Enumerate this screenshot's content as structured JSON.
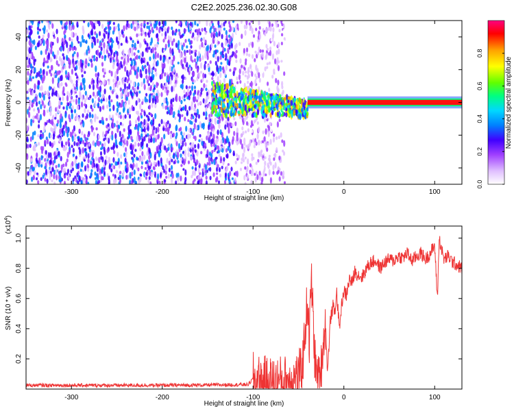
{
  "figure_title": "C2E2.2025.236.02.30.G08",
  "chart_data": [
    {
      "type": "heatmap",
      "title": "C2E2.2025.236.02.30.G08",
      "xlabel": "Height of straight line (km)",
      "ylabel": "Frequency (Hz)",
      "xlim": [
        -350,
        130
      ],
      "ylim": [
        -50,
        50
      ],
      "xticks": [
        -300,
        -200,
        -100,
        0,
        100
      ],
      "yticks": [
        -40,
        -20,
        0,
        20,
        40
      ],
      "colorbar": {
        "label": "Normalized spectral amplitude",
        "range": [
          0,
          1
        ],
        "ticks": [
          "0.0",
          "0.2",
          "0.4",
          "0.6",
          "0.8"
        ],
        "tick_values": [
          0.0,
          0.2,
          0.4,
          0.6,
          0.8
        ],
        "colormap": [
          "#ffffff",
          "#e0c0ff",
          "#a040ff",
          "#4000ff",
          "#0080ff",
          "#00d8ff",
          "#00ff80",
          "#60ff00",
          "#ffff00",
          "#ffa000",
          "#ff0000",
          "#ff0080"
        ]
      },
      "regions": [
        {
          "name": "noise",
          "x": [
            -350,
            -120
          ],
          "freq": [
            -50,
            50
          ],
          "amplitude": 0.1
        },
        {
          "name": "sparse noise",
          "x": [
            -120,
            -65
          ],
          "freq": [
            -50,
            50
          ],
          "amplitude": 0.05
        },
        {
          "name": "onset",
          "x": [
            -145,
            -40
          ],
          "freq": [
            -8,
            12
          ],
          "amplitude": 0.45
        },
        {
          "name": "carrier line",
          "x": [
            -40,
            130
          ],
          "freq": [
            -2,
            2
          ],
          "amplitude": 0.9
        }
      ]
    },
    {
      "type": "line",
      "xlabel": "Height of straight line (km)",
      "ylabel": "SNR (10 * v/v)",
      "y_scale_label": "(x10",
      "y_scale_exp": "4",
      "y_scale_close": ")",
      "xlim": [
        -350,
        130
      ],
      "ylim": [
        0,
        1.08
      ],
      "xticks": [
        -300,
        -200,
        -100,
        0,
        100
      ],
      "yticks": [
        "0.2",
        "0.4",
        "0.6",
        "0.8",
        "1.0"
      ],
      "ytick_values": [
        0.2,
        0.4,
        0.6,
        0.8,
        1.0
      ],
      "line_color": "#ee3333",
      "x": [
        -350,
        -300,
        -250,
        -200,
        -150,
        -105,
        -100,
        -95,
        -80,
        -65,
        -55,
        -50,
        -47,
        -45,
        -42,
        -40,
        -38,
        -36,
        -34,
        -32,
        -30,
        -28,
        -25,
        -22,
        -20,
        -18,
        -15,
        -12,
        -10,
        -8,
        -5,
        -2,
        0,
        3,
        6,
        9,
        12,
        15,
        20,
        25,
        30,
        35,
        40,
        45,
        50,
        55,
        60,
        65,
        70,
        75,
        80,
        85,
        90,
        95,
        100,
        103,
        105,
        110,
        115,
        120,
        125,
        130
      ],
      "y": [
        0.025,
        0.025,
        0.025,
        0.025,
        0.027,
        0.03,
        0.07,
        0.05,
        0.04,
        0.05,
        0.06,
        0.08,
        0.12,
        0.2,
        0.45,
        0.6,
        0.3,
        0.75,
        0.5,
        0.2,
        0.1,
        0.05,
        0.15,
        0.35,
        0.42,
        0.1,
        0.45,
        0.55,
        0.5,
        0.65,
        0.4,
        0.58,
        0.65,
        0.62,
        0.73,
        0.7,
        0.78,
        0.76,
        0.74,
        0.8,
        0.84,
        0.85,
        0.8,
        0.84,
        0.86,
        0.85,
        0.88,
        0.87,
        0.9,
        0.85,
        0.88,
        0.9,
        0.86,
        0.9,
        0.95,
        0.6,
        1.0,
        0.86,
        0.88,
        0.84,
        0.82,
        0.8
      ]
    }
  ]
}
